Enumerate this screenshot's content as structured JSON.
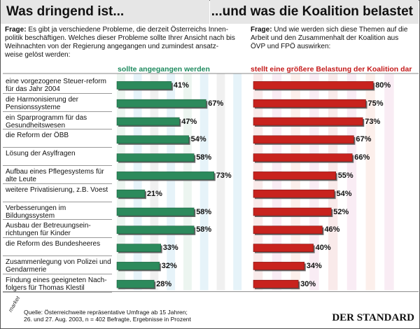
{
  "header": {
    "left_title": "Was dringend ist...",
    "right_title": "...und was die Koalition belastet"
  },
  "question_left": {
    "label": "Frage:",
    "text": "Es gibt ja verschiedene Probleme, die derzeit Österreichs Innen-politik beschäftigen. Welches dieser Probleme sollte Ihrer Ansicht nach bis Weihnachten von der Regierung angegangen und zumindest ansatz-weise gelöst werden:"
  },
  "question_right": {
    "label": "Frage:",
    "text": "Und wie werden sich diese Themen auf die Arbeit und den Zusammenhalt der Koalition aus ÖVP und FPÖ auswirken:"
  },
  "colors": {
    "green": "#2c8a5c",
    "red": "#c8231e",
    "header_bg": "#e6e6e6"
  },
  "chart_data": {
    "type": "bar",
    "categories": [
      "eine vorgezogene Steuer-reform für das Jahr 2004",
      "die Harmonisierung der Pensionssysteme",
      "ein Sparprogramm für das Gesundheitswesen",
      "die Reform der ÖBB",
      "Lösung der Asylfragen",
      "Aufbau eines Pflegesystems für alte Leute",
      "weitere Privatisierung, z.B. Voest",
      "Verbesserungen im Bildungssystem",
      "Ausbau der Betreuungsein-richtungen für Kinder",
      "die Reform des Bundesheeres",
      "Zusammenlegung von Polizei und Gendarmerie",
      "Findung eines geeigneten Nach-folgers für Thomas Klestil"
    ],
    "series": [
      {
        "name": "sollte angegangen werden",
        "values": [
          41,
          67,
          47,
          54,
          58,
          73,
          21,
          58,
          58,
          33,
          32,
          28
        ],
        "labels": [
          "41%",
          "67%",
          "47%",
          "54%",
          "58%",
          "73%",
          "21%",
          "58%",
          "58%",
          "33%",
          "32%",
          "28%"
        ]
      },
      {
        "name": "stellt eine größere Belastung der Koalition dar",
        "values": [
          80,
          75,
          73,
          67,
          66,
          55,
          54,
          52,
          46,
          40,
          34,
          30
        ],
        "labels": [
          "80%",
          "75%",
          "73%",
          "67%",
          "66%",
          "55%",
          "54%",
          "52%",
          "46%",
          "40%",
          "34%",
          "30%"
        ]
      }
    ],
    "ylim": [
      0,
      100
    ],
    "unit": "%"
  },
  "footer": {
    "source_line1": "Quelle: Österreichweite repräsentative Umfrage ab 15 Jahren;",
    "source_line2": "26. und 27. Aug. 2003, n = 402 Befragte, Ergebnisse in Prozent",
    "logo_text": "market",
    "publisher": "DER STANDARD"
  }
}
